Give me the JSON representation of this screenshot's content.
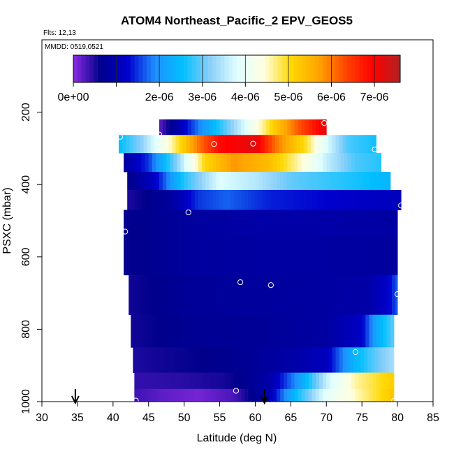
{
  "header": {
    "title": "ATOM4 Northeast_Pacific_2 EPV_GEOS5",
    "flts": "Flts: 12,13",
    "mmdd": "MMDD: 0519,0521"
  },
  "colorbar": {
    "range": [
      0,
      7.6e-06
    ],
    "tick_values": [
      0,
      2e-06,
      3e-06,
      4e-06,
      5e-06,
      6e-06,
      7e-06
    ],
    "tick_labels": [
      "0e+00",
      "2e-06",
      "3e-06",
      "4e-06",
      "5e-06",
      "6e-06",
      "7e-06"
    ],
    "colors": [
      "#8a2be2",
      "#00008b",
      "#0000cd",
      "#1e90ff",
      "#00bfff",
      "#87cefa",
      "#e0ffff",
      "#ffffe0",
      "#ffd700",
      "#ffa500",
      "#ff4500",
      "#ff0000",
      "#b22222"
    ]
  },
  "chart_data": {
    "type": "heatmap",
    "title": "ATOM4 Northeast_Pacific_2 EPV_GEOS5",
    "xlabel": "Latitude (deg N)",
    "ylabel": "PSXC (mbar)",
    "xlim": [
      30,
      85
    ],
    "ylim": [
      1000,
      0
    ],
    "x_ticks": [
      30,
      35,
      40,
      45,
      50,
      55,
      60,
      65,
      70,
      75,
      80,
      85
    ],
    "y_ticks": [
      200,
      400,
      600,
      800,
      1000
    ],
    "value_range": [
      0,
      7.6e-06
    ],
    "rows": [
      {
        "p": 240,
        "lat_start": 46.5,
        "lat_end": 70.0,
        "profile": [
          [
            46.5,
            2e-07
          ],
          [
            52,
            1.8e-06
          ],
          [
            58,
            3.6e-06
          ],
          [
            63,
            5.3e-06
          ],
          [
            66,
            6.2e-06
          ],
          [
            70,
            7.2e-06
          ]
        ]
      },
      {
        "p": 290,
        "lat_start": 40.8,
        "lat_end": 77.0,
        "profile": [
          [
            40.8,
            2.5e-06
          ],
          [
            44,
            3.2e-06
          ],
          [
            48,
            4.5e-06
          ],
          [
            52,
            6e-06
          ],
          [
            55,
            6.9e-06
          ],
          [
            60,
            7.2e-06
          ],
          [
            63,
            6e-06
          ],
          [
            67,
            5e-06
          ],
          [
            70,
            3.8e-06
          ],
          [
            73,
            2.9e-06
          ],
          [
            77,
            2.6e-06
          ]
        ]
      },
      {
        "p": 340,
        "lat_start": 41.5,
        "lat_end": 77.7,
        "profile": [
          [
            41.5,
            8e-07
          ],
          [
            45,
            1.5e-06
          ],
          [
            49,
            3.2e-06
          ],
          [
            53,
            5.1e-06
          ],
          [
            57,
            5.8e-06
          ],
          [
            62,
            5.4e-06
          ],
          [
            66,
            4.6e-06
          ],
          [
            70,
            3.6e-06
          ],
          [
            74,
            2.9e-06
          ],
          [
            77.7,
            2.7e-06
          ]
        ]
      },
      {
        "p": 390,
        "lat_start": 42.0,
        "lat_end": 79.0,
        "profile": [
          [
            42,
            6e-07
          ],
          [
            46,
            1.2e-06
          ],
          [
            50,
            2.7e-06
          ],
          [
            55,
            3.8e-06
          ],
          [
            60,
            3.5e-06
          ],
          [
            65,
            3e-06
          ],
          [
            70,
            2.8e-06
          ],
          [
            75,
            2.6e-06
          ],
          [
            79,
            2.4e-06
          ]
        ]
      },
      {
        "p": 440,
        "lat_start": 42.0,
        "lat_end": 80.5,
        "profile": [
          [
            42,
            5e-07
          ],
          [
            48,
            8e-07
          ],
          [
            52,
            1.5e-06
          ],
          [
            56,
            1.7e-06
          ],
          [
            62,
            1.4e-06
          ],
          [
            68,
            1.3e-06
          ],
          [
            74,
            1.2e-06
          ],
          [
            80.5,
            1.1e-06
          ]
        ]
      },
      {
        "p": 500,
        "lat_start": 41.5,
        "lat_end": 80.0,
        "profile": [
          [
            41.5,
            6e-07
          ],
          [
            50,
            8e-07
          ],
          [
            60,
            9e-07
          ],
          [
            70,
            9e-07
          ],
          [
            80,
            8.5e-07
          ]
        ]
      },
      {
        "p": 600,
        "lat_start": 41.5,
        "lat_end": 80.0,
        "profile": [
          [
            41.5,
            6e-07
          ],
          [
            50,
            8e-07
          ],
          [
            60,
            8.5e-07
          ],
          [
            70,
            8.5e-07
          ],
          [
            80,
            8e-07
          ]
        ]
      },
      {
        "p": 700,
        "lat_start": 42.2,
        "lat_end": 80.0,
        "profile": [
          [
            42.2,
            5.5e-07
          ],
          [
            50,
            7.5e-07
          ],
          [
            60,
            8e-07
          ],
          [
            70,
            8.5e-07
          ],
          [
            76,
            9e-07
          ],
          [
            79,
            1.3e-06
          ],
          [
            80,
            1.7e-06
          ]
        ]
      },
      {
        "p": 800,
        "lat_start": 42.5,
        "lat_end": 79.5,
        "profile": [
          [
            42.5,
            5.5e-07
          ],
          [
            50,
            7e-07
          ],
          [
            60,
            7.5e-07
          ],
          [
            70,
            8.5e-07
          ],
          [
            75,
            1.2e-06
          ],
          [
            77,
            2.2e-06
          ],
          [
            79.5,
            3e-06
          ]
        ]
      },
      {
        "p": 890,
        "lat_start": 42.8,
        "lat_end": 79.5,
        "profile": [
          [
            42.8,
            5e-07
          ],
          [
            50,
            6e-07
          ],
          [
            58,
            7e-07
          ],
          [
            65,
            9e-07
          ],
          [
            70,
            1.1e-06
          ],
          [
            74,
            2.4e-06
          ],
          [
            77,
            3e-06
          ],
          [
            79.5,
            3.4e-06
          ]
        ]
      },
      {
        "p": 950,
        "lat_start": 43.0,
        "lat_end": 79.5,
        "profile": [
          [
            43,
            4e-07
          ],
          [
            50,
            4.5e-07
          ],
          [
            56,
            5.5e-07
          ],
          [
            62,
            9e-07
          ],
          [
            66,
            2e-06
          ],
          [
            70,
            3.6e-06
          ],
          [
            74,
            4.6e-06
          ],
          [
            79.5,
            5.2e-06
          ]
        ]
      },
      {
        "p": 985,
        "lat_start": 43.0,
        "lat_end": 79.5,
        "profile": [
          [
            43,
            3.5e-07
          ],
          [
            47,
            2e-07
          ],
          [
            52,
            1e-07
          ],
          [
            57,
            3e-07
          ],
          [
            62,
            1e-06
          ],
          [
            66,
            2.6e-06
          ],
          [
            70,
            3.9e-06
          ],
          [
            74,
            4.5e-06
          ],
          [
            79.5,
            5.3e-06
          ]
        ]
      }
    ],
    "bands": [
      {
        "p_top": 220,
        "p_bot": 263
      },
      {
        "p_top": 263,
        "p_bot": 313
      },
      {
        "p_top": 313,
        "p_bot": 365
      },
      {
        "p_top": 365,
        "p_bot": 415
      },
      {
        "p_top": 415,
        "p_bot": 470
      },
      {
        "p_top": 470,
        "p_bot": 540
      },
      {
        "p_top": 540,
        "p_bot": 650
      },
      {
        "p_top": 650,
        "p_bot": 760
      },
      {
        "p_top": 760,
        "p_bot": 850
      },
      {
        "p_top": 850,
        "p_bot": 920
      },
      {
        "p_top": 920,
        "p_bot": 965
      },
      {
        "p_top": 965,
        "p_bot": 1000
      }
    ],
    "points": [
      {
        "lat": 69.7,
        "p": 230
      },
      {
        "lat": 46.5,
        "p": 262
      },
      {
        "lat": 41.0,
        "p": 268
      },
      {
        "lat": 54.2,
        "p": 288
      },
      {
        "lat": 59.7,
        "p": 287
      },
      {
        "lat": 76.8,
        "p": 303
      },
      {
        "lat": 80.5,
        "p": 458
      },
      {
        "lat": 50.6,
        "p": 477
      },
      {
        "lat": 41.7,
        "p": 530
      },
      {
        "lat": 57.9,
        "p": 670
      },
      {
        "lat": 62.2,
        "p": 678
      },
      {
        "lat": 80.0,
        "p": 703
      },
      {
        "lat": 74.1,
        "p": 863
      },
      {
        "lat": 57.3,
        "p": 970
      },
      {
        "lat": 43.2,
        "p": 997
      },
      {
        "lat": 79.5,
        "p": 998
      }
    ],
    "arrows": [
      {
        "lat": 34.7
      },
      {
        "lat": 61.3
      }
    ]
  }
}
